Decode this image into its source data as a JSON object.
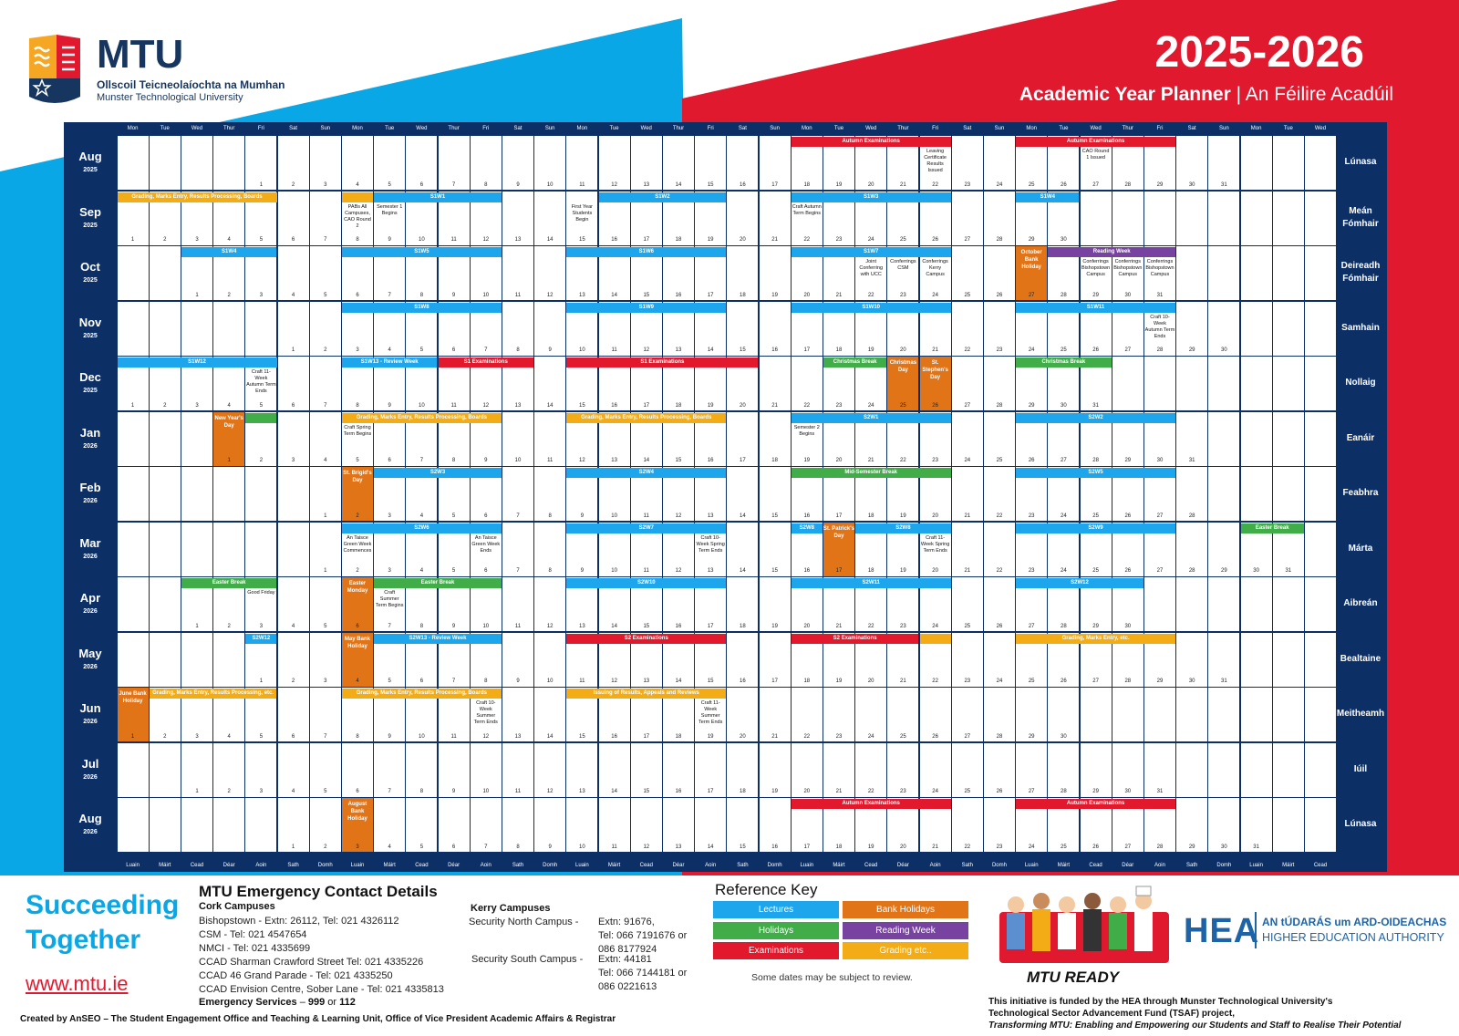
{
  "brand": {
    "name": "MTU",
    "line1": "Ollscoil Teicneolaíochta na Mumhan",
    "line2": "Munster Technological University"
  },
  "title": {
    "year": "2025-2026",
    "subtitle_en": "Academic Year Planner",
    "subtitle_sep": " | ",
    "subtitle_ga": "An Féilire Acadúil"
  },
  "day_headers": [
    "Mon",
    "Tue",
    "Wed",
    "Thur",
    "Fri",
    "Sat",
    "Sun",
    "Mon",
    "Tue",
    "Wed",
    "Thur",
    "Fri",
    "Sat",
    "Sun",
    "Mon",
    "Tue",
    "Wed",
    "Thur",
    "Fri",
    "Sat",
    "Sun",
    "Mon",
    "Tue",
    "Wed",
    "Thur",
    "Fri",
    "Sat",
    "Sun",
    "Mon",
    "Tue",
    "Wed",
    "Thur",
    "Fri",
    "Sat",
    "Sun",
    "Mon",
    "Tue",
    "Wed"
  ],
  "day_footers": [
    "Luain",
    "Máirt",
    "Cead",
    "Déar",
    "Aoin",
    "Sath",
    "Domh",
    "Luain",
    "Máirt",
    "Cead",
    "Déar",
    "Aoin",
    "Sath",
    "Domh",
    "Luain",
    "Máirt",
    "Cead",
    "Déar",
    "Aoin",
    "Sath",
    "Domh",
    "Luain",
    "Máirt",
    "Cead",
    "Déar",
    "Aoin",
    "Sath",
    "Domh",
    "Luain",
    "Máirt",
    "Cead",
    "Déar",
    "Aoin",
    "Sath",
    "Domh",
    "Luain",
    "Máirt",
    "Cead"
  ],
  "months": [
    {
      "name": "Aug",
      "year": "2025",
      "irish": "Lúnasa",
      "start": 4,
      "days": 31,
      "bars": [
        {
          "s": 18,
          "e": 22,
          "t": "Autumn Examinations",
          "c": "exam"
        },
        {
          "s": 25,
          "e": 29,
          "t": "Autumn Examinations",
          "c": "exam"
        }
      ],
      "notes": [
        {
          "d": 22,
          "t": "Leaving Certificate Results Issued"
        },
        {
          "d": 27,
          "t": "CAO Round 1 Issued"
        }
      ],
      "banks": []
    },
    {
      "name": "Sep",
      "year": "2025",
      "irish": "Meán Fómhair",
      "start": 0,
      "days": 30,
      "bars": [
        {
          "s": 1,
          "e": 5,
          "t": "Grading, Marks Entry, Results Processing, Boards",
          "c": "grade"
        },
        {
          "s": 8,
          "e": 8,
          "t": "",
          "c": "grade"
        },
        {
          "s": 9,
          "e": 12,
          "t": "S1W1",
          "c": "lec"
        },
        {
          "s": 16,
          "e": 19,
          "t": "S1W2",
          "c": "lec"
        },
        {
          "s": 22,
          "e": 26,
          "t": "S1W3",
          "c": "lec"
        },
        {
          "s": 29,
          "e": 30,
          "t": "S1W4",
          "c": "lec"
        }
      ],
      "notes": [
        {
          "d": 8,
          "t": "PABs All Campuses, CAO Round 2"
        },
        {
          "d": 9,
          "t": "Semester 1 Begins"
        },
        {
          "d": 15,
          "t": "First Year Students Begin"
        },
        {
          "d": 22,
          "t": "Craft Autumn Term Begins"
        }
      ],
      "banks": []
    },
    {
      "name": "Oct",
      "year": "2025",
      "irish": "Deireadh Fómhair",
      "start": 2,
      "days": 31,
      "bars": [
        {
          "s": 1,
          "e": 3,
          "t": "S1W4",
          "c": "lec"
        },
        {
          "s": 6,
          "e": 10,
          "t": "S1W5",
          "c": "lec"
        },
        {
          "s": 13,
          "e": 17,
          "t": "S1W6",
          "c": "lec"
        },
        {
          "s": 20,
          "e": 24,
          "t": "S1W7",
          "c": "lec"
        },
        {
          "s": 28,
          "e": 31,
          "t": "Reading Week",
          "c": "read"
        }
      ],
      "notes": [
        {
          "d": 22,
          "t": "Joint Conferring with UCC"
        },
        {
          "d": 23,
          "t": "Conferrings CSM"
        },
        {
          "d": 24,
          "t": "Conferrings Kerry Campus"
        },
        {
          "d": 29,
          "t": "Conferrings Bishopstown Campus"
        },
        {
          "d": 30,
          "t": "Conferrings Bishopstown Campus"
        },
        {
          "d": 31,
          "t": "Conferrings Bishopstown Campus"
        }
      ],
      "banks": [
        {
          "d": 27,
          "t": "October Bank Holiday"
        }
      ]
    },
    {
      "name": "Nov",
      "year": "2025",
      "irish": "Samhain",
      "start": 5,
      "days": 30,
      "bars": [
        {
          "s": 3,
          "e": 7,
          "t": "S1W8",
          "c": "lec"
        },
        {
          "s": 10,
          "e": 14,
          "t": "S1W9",
          "c": "lec"
        },
        {
          "s": 17,
          "e": 21,
          "t": "S1W10",
          "c": "lec"
        },
        {
          "s": 24,
          "e": 28,
          "t": "S1W11",
          "c": "lec"
        }
      ],
      "notes": [
        {
          "d": 28,
          "t": "Craft 10-Week Autumn Term Ends"
        }
      ],
      "banks": []
    },
    {
      "name": "Dec",
      "year": "2025",
      "irish": "Nollaig",
      "start": 0,
      "days": 31,
      "bars": [
        {
          "s": 1,
          "e": 5,
          "t": "S1W12",
          "c": "lec"
        },
        {
          "s": 8,
          "e": 10,
          "t": "S1W13 - Review Week",
          "c": "lec"
        },
        {
          "s": 11,
          "e": 13,
          "t": "S1 Examinations",
          "c": "exam"
        },
        {
          "s": 15,
          "e": 20,
          "t": "S1 Examinations",
          "c": "exam"
        },
        {
          "s": 23,
          "e": 24,
          "t": "Christmas Break",
          "c": "hol"
        },
        {
          "s": 29,
          "e": 31,
          "t": "Christmas Break",
          "c": "hol"
        }
      ],
      "notes": [
        {
          "d": 5,
          "t": "Craft 11-Week Autumn Term Ends"
        }
      ],
      "banks": [
        {
          "d": 25,
          "t": "Christmas Day"
        },
        {
          "d": 26,
          "t": "St. Stephen's Day"
        }
      ]
    },
    {
      "name": "Jan",
      "year": "2026",
      "irish": "Eanáir",
      "start": 3,
      "days": 31,
      "bars": [
        {
          "s": 2,
          "e": 2,
          "t": "",
          "c": "hol"
        },
        {
          "s": 5,
          "e": 9,
          "t": "Grading, Marks Entry, Results Processing, Boards",
          "c": "grade"
        },
        {
          "s": 12,
          "e": 16,
          "t": "Grading, Marks Entry, Results Processing, Boards",
          "c": "grade"
        },
        {
          "s": 19,
          "e": 23,
          "t": "S2W1",
          "c": "lec"
        },
        {
          "s": 26,
          "e": 30,
          "t": "S2W2",
          "c": "lec"
        }
      ],
      "notes": [
        {
          "d": 5,
          "t": "Craft Spring Term Begins"
        },
        {
          "d": 19,
          "t": "Semester 2 Begins"
        }
      ],
      "banks": [
        {
          "d": 1,
          "t": "New Year's Day"
        }
      ]
    },
    {
      "name": "Feb",
      "year": "2026",
      "irish": "Feabhra",
      "start": 6,
      "days": 28,
      "bars": [
        {
          "s": 3,
          "e": 6,
          "t": "S2W3",
          "c": "lec"
        },
        {
          "s": 9,
          "e": 13,
          "t": "S2W4",
          "c": "lec"
        },
        {
          "s": 16,
          "e": 20,
          "t": "Mid-Semester Break",
          "c": "hol"
        },
        {
          "s": 23,
          "e": 27,
          "t": "S2W5",
          "c": "lec"
        }
      ],
      "notes": [],
      "banks": [
        {
          "d": 2,
          "t": "St. Brigid's Day"
        }
      ]
    },
    {
      "name": "Mar",
      "year": "2026",
      "irish": "Márta",
      "start": 6,
      "days": 31,
      "bars": [
        {
          "s": 2,
          "e": 6,
          "t": "S2W6",
          "c": "lec"
        },
        {
          "s": 9,
          "e": 13,
          "t": "S2W7",
          "c": "lec"
        },
        {
          "s": 16,
          "e": 16,
          "t": "S2W8",
          "c": "lec"
        },
        {
          "s": 18,
          "e": 20,
          "t": "S2W8",
          "c": "lec"
        },
        {
          "s": 23,
          "e": 27,
          "t": "S2W9",
          "c": "lec"
        },
        {
          "s": 30,
          "e": 31,
          "t": "Easter Break",
          "c": "hol"
        }
      ],
      "notes": [
        {
          "d": 2,
          "t": "An Taisce Green Week Commences"
        },
        {
          "d": 6,
          "t": "An Taisce Green Week Ends"
        },
        {
          "d": 13,
          "t": "Craft 10-Week Spring Term Ends"
        },
        {
          "d": 20,
          "t": "Craft 11-Week Spring Term Ends"
        }
      ],
      "banks": [
        {
          "d": 17,
          "t": "St. Patrick's Day"
        }
      ]
    },
    {
      "name": "Apr",
      "year": "2026",
      "irish": "Aibreán",
      "start": 2,
      "days": 30,
      "bars": [
        {
          "s": 1,
          "e": 3,
          "t": "Easter Break",
          "c": "hol"
        },
        {
          "s": 7,
          "e": 10,
          "t": "Easter Break",
          "c": "hol"
        },
        {
          "s": 13,
          "e": 17,
          "t": "S2W10",
          "c": "lec"
        },
        {
          "s": 20,
          "e": 24,
          "t": "S2W11",
          "c": "lec"
        },
        {
          "s": 27,
          "e": 30,
          "t": "S2W12",
          "c": "lec"
        }
      ],
      "notes": [
        {
          "d": 3,
          "t": "Good Friday"
        },
        {
          "d": 7,
          "t": "Craft Summer Term Begins"
        }
      ],
      "banks": [
        {
          "d": 6,
          "t": "Easter Monday"
        }
      ]
    },
    {
      "name": "May",
      "year": "2026",
      "irish": "Bealtaine",
      "start": 4,
      "days": 31,
      "bars": [
        {
          "s": 1,
          "e": 1,
          "t": "S2W12",
          "c": "lec"
        },
        {
          "s": 5,
          "e": 8,
          "t": "S2W13 - Review Week",
          "c": "lec"
        },
        {
          "s": 11,
          "e": 15,
          "t": "S2 Examinations",
          "c": "exam"
        },
        {
          "s": 18,
          "e": 21,
          "t": "S2 Examinations",
          "c": "exam"
        },
        {
          "s": 22,
          "e": 22,
          "t": "",
          "c": "grade"
        },
        {
          "s": 25,
          "e": 29,
          "t": "Grading, Marks Entry, etc.",
          "c": "grade"
        }
      ],
      "notes": [],
      "banks": [
        {
          "d": 4,
          "t": "May Bank Holiday"
        }
      ]
    },
    {
      "name": "Jun",
      "year": "2026",
      "irish": "Meitheamh",
      "start": 0,
      "days": 30,
      "bars": [
        {
          "s": 2,
          "e": 5,
          "t": "Grading, Marks Entry, Results Processing, etc.",
          "c": "grade"
        },
        {
          "s": 8,
          "e": 12,
          "t": "Grading, Marks Entry, Results Processing, Boards",
          "c": "grade"
        },
        {
          "s": 15,
          "e": 19,
          "t": "Issuing of Results, Appeals and Reviews",
          "c": "grade"
        }
      ],
      "notes": [
        {
          "d": 12,
          "t": "Craft 10-Week Summer Term Ends"
        },
        {
          "d": 19,
          "t": "Craft 11-Week Summer Term Ends"
        }
      ],
      "banks": [
        {
          "d": 1,
          "t": "June Bank Holiday"
        }
      ]
    },
    {
      "name": "Jul",
      "year": "2026",
      "irish": "Iúil",
      "start": 2,
      "days": 31,
      "bars": [],
      "notes": [],
      "banks": []
    },
    {
      "name": "Aug",
      "year": "2026",
      "irish": "Lúnasa",
      "start": 5,
      "days": 31,
      "bars": [
        {
          "s": 17,
          "e": 21,
          "t": "Autumn Examinations",
          "c": "exam"
        },
        {
          "s": 24,
          "e": 28,
          "t": "Autumn Examinations",
          "c": "exam"
        }
      ],
      "notes": [],
      "banks": [
        {
          "d": 3,
          "t": "August Bank Holiday"
        }
      ]
    }
  ],
  "footer": {
    "slogan1": "Succeeding",
    "slogan2": "Together",
    "website": "www.mtu.ie",
    "contact_title": "MTU Emergency Contact Details",
    "cork_heading": "Cork Campuses",
    "cork_lines": [
      "Bishopstown -  Extn: 26112, Tel: 021 4326112",
      "CSM -  Tel: 021 4547654",
      "NMCI -  Tel: 021 4335699",
      "CCAD Sharman Crawford Street  Tel: 021 4335226",
      "CCAD 46 Grand Parade - Tel: 021 4335250",
      "CCAD Envision Centre, Sober Lane - Tel: 021 4335813"
    ],
    "emergency_label": "Emergency Services",
    "emergency_mid": " – ",
    "emergency_num1": "999",
    "emergency_or": " or ",
    "emergency_num2": "112",
    "kerry_heading": "Kerry  Campuses",
    "kerry_north_label": "Security North Campus -",
    "kerry_north_lines": [
      "Extn: 91676,",
      "Tel: 066 7191676 or",
      "086 8177924"
    ],
    "kerry_south_label": "Security South Campus -",
    "kerry_south_lines": [
      "Extn: 44181",
      "Tel: 066 7144181 or",
      "086 0221613"
    ],
    "key_title": "Reference Key",
    "key": [
      {
        "t": "Lectures",
        "c": "#1da6ec"
      },
      {
        "t": "Bank Holidays",
        "c": "#e27418"
      },
      {
        "t": "Holidays",
        "c": "#41ad49"
      },
      {
        "t": "Reading Week",
        "c": "#7843a0"
      },
      {
        "t": "Examinations",
        "c": "#e2192c"
      },
      {
        "t": "Grading etc..",
        "c": "#f3ac16"
      }
    ],
    "key_note": "Some dates may be subject to review.",
    "mtu_ready": "MTU READY",
    "hea_abbr": "HEA",
    "hea_ga": "AN tÚDARÁS um ARD-OIDEACHAS",
    "hea_en": "HIGHER EDUCATION AUTHORITY",
    "funding1": "This initiative is funded by the HEA through Munster Technological University's",
    "funding2": "Technological Sector Advancement Fund (TSAF) project,",
    "funding3": "Transforming MTU: Enabling and Empowering our Students and Staff to Realise Their Potential",
    "created": "Created by AnSEO – The Student Engagement Office and Teaching & Learning Unit, Office of Vice President Academic Affairs & Registrar"
  }
}
